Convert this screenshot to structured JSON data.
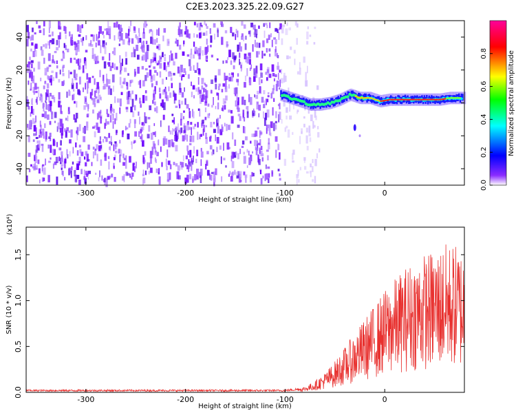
{
  "title": "C2E3.2023.325.22.09.G27",
  "chart_data": [
    {
      "type": "heatmap",
      "xlabel": "Height of straight line (km)",
      "ylabel": "Frequency (Hz)",
      "xlim": [
        -360,
        80
      ],
      "ylim": [
        -50,
        50
      ],
      "xticks": [
        -300,
        -200,
        -100,
        0
      ],
      "yticks": [
        -40,
        -20,
        0,
        20,
        40
      ],
      "xtick_labels": [
        "-300",
        "-200",
        "-100",
        "0"
      ],
      "ytick_labels": [
        "-40",
        "-20",
        "0",
        "20",
        "40"
      ],
      "colorbar": {
        "label": "Normalized spectral amplitude",
        "range": [
          0,
          1
        ],
        "ticks": [
          0.0,
          0.2,
          0.4,
          0.6,
          0.8
        ],
        "tick_labels": [
          "0.0",
          "0.2",
          "0.4",
          "0.6",
          "0.8"
        ],
        "colors": [
          "#ffffff",
          "#7a00ff",
          "#0000ff",
          "#00ffff",
          "#00ff00",
          "#ffff00",
          "#ff0000",
          "#ff00aa"
        ]
      },
      "signal_track": {
        "x": [
          -105,
          -95,
          -85,
          -75,
          -65,
          -55,
          -45,
          -35,
          -25,
          -15,
          -5,
          5,
          15,
          25,
          35,
          45,
          55,
          65,
          75
        ],
        "y": [
          5,
          3,
          1,
          -1,
          -1,
          0,
          2,
          5,
          3,
          3,
          1,
          2,
          2,
          2,
          2,
          2,
          2,
          3,
          3
        ]
      },
      "noise_region_x": [
        -360,
        -80
      ]
    },
    {
      "type": "line",
      "xlabel": "Height of straight line (km)",
      "ylabel": "SNR (10 * v/v)",
      "y_multiplier": "(x10⁴)",
      "xlim": [
        -360,
        80
      ],
      "ylim": [
        0,
        1.8
      ],
      "xticks": [
        -300,
        -200,
        -100,
        0
      ],
      "yticks": [
        0.0,
        0.5,
        1.0,
        1.5
      ],
      "xtick_labels": [
        "-300",
        "-200",
        "-100",
        "0"
      ],
      "ytick_labels": [
        "0.0",
        "0.5",
        "1.0",
        "1.5"
      ],
      "color": "#e8312f",
      "series": [
        {
          "x": [
            -360,
            -300,
            -200,
            -100,
            -80,
            -70,
            -60,
            -50,
            -40,
            -30,
            -20,
            -10,
            0,
            10,
            20,
            30,
            40,
            50,
            60,
            70,
            80
          ],
          "values": [
            0.02,
            0.02,
            0.02,
            0.02,
            0.04,
            0.08,
            0.14,
            0.22,
            0.32,
            0.42,
            0.52,
            0.62,
            0.72,
            0.8,
            0.88,
            0.94,
            0.98,
            1.0,
            1.05,
            1.05,
            1.0
          ]
        }
      ]
    }
  ]
}
